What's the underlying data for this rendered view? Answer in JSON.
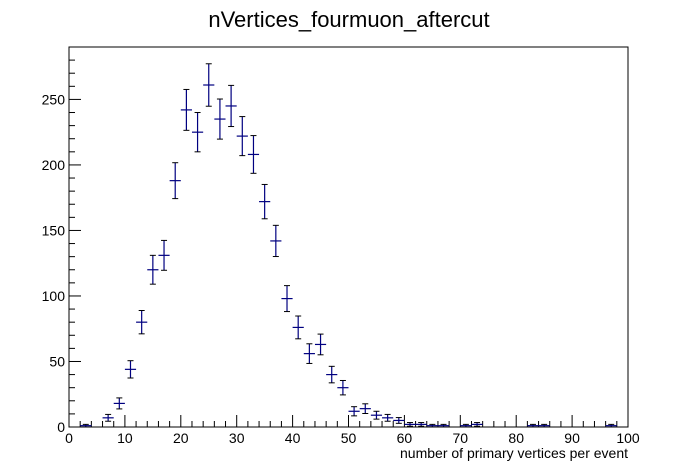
{
  "chart_data": {
    "type": "scatter",
    "title": "nVertices_fourmuon_aftercut",
    "xlabel": "number of primary vertices per event",
    "ylabel": "",
    "xlim": [
      0,
      100
    ],
    "ylim": [
      0,
      290
    ],
    "x_ticks": [
      0,
      10,
      20,
      30,
      40,
      50,
      60,
      70,
      80,
      90,
      100
    ],
    "y_ticks": [
      0,
      50,
      100,
      150,
      200,
      250
    ],
    "bin_width": 2,
    "grid": false,
    "legend": "none",
    "series": [
      {
        "color": "#000080",
        "x": [
          3,
          7,
          9,
          11,
          13,
          15,
          17,
          19,
          21,
          23,
          25,
          27,
          29,
          31,
          33,
          35,
          37,
          39,
          41,
          43,
          45,
          47,
          49,
          51,
          53,
          55,
          57,
          59,
          61,
          63,
          65,
          67,
          71,
          73,
          83,
          85,
          97
        ],
        "y": [
          1,
          7,
          18,
          44,
          80,
          120,
          131,
          188,
          242,
          225,
          261,
          235,
          245,
          222,
          208,
          172,
          142,
          98,
          76,
          56,
          63,
          40,
          30,
          12,
          14,
          9,
          7,
          5,
          2,
          2,
          1,
          1,
          1,
          2,
          1,
          1,
          1
        ],
        "yerr": [
          1,
          2.6,
          4.2,
          6.6,
          8.9,
          11,
          11.4,
          13.7,
          15.6,
          15,
          16.2,
          15.3,
          15.7,
          14.9,
          14.4,
          13.1,
          11.9,
          9.9,
          8.7,
          7.5,
          7.9,
          6.3,
          5.5,
          3.5,
          3.7,
          3,
          2.6,
          2.2,
          1.4,
          1.4,
          1,
          1,
          1,
          1.4,
          1,
          1,
          1
        ]
      }
    ]
  }
}
